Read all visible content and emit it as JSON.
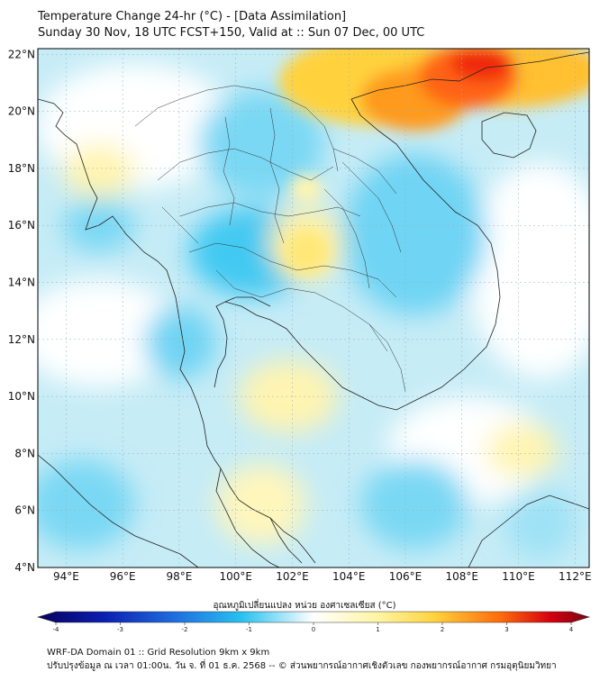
{
  "title": {
    "line1": "Temperature Change 24-hr (°C) - [Data Assimilation]",
    "line2": "Sunday 30 Nov, 18 UTC FCST+150, Valid at :: Sun 07 Dec, 00 UTC"
  },
  "axes": {
    "y_ticks": [
      "22°N",
      "20°N",
      "18°N",
      "16°N",
      "14°N",
      "12°N",
      "10°N",
      "8°N",
      "6°N",
      "4°N"
    ],
    "x_ticks": [
      "94°E",
      "96°E",
      "98°E",
      "100°E",
      "102°E",
      "104°E",
      "106°E",
      "108°E",
      "110°E",
      "112°E"
    ],
    "lon_range": [
      93,
      112.5
    ],
    "lat_range": [
      4,
      22.2
    ]
  },
  "colorbar": {
    "label": "อุณหภูมิเปลี่ยนแปลง หน่วย องศาเซลเซียส (°C)",
    "ticks": [
      "-4",
      "-3",
      "-2",
      "-1",
      "0",
      "1",
      "2",
      "3",
      "4"
    ],
    "range": [
      -4,
      4
    ],
    "colors": [
      "#07005e",
      "#0a1fb0",
      "#1e6fe0",
      "#27c2f0",
      "#ffffff",
      "#fff4a0",
      "#ffd23c",
      "#ff6a0a",
      "#d4000f",
      "#7a0010"
    ]
  },
  "footer": {
    "line1": "WRF-DA Domain 01 :: Grid Resolution 9km x 9km",
    "line2": "ปรับปรุงข้อมูล ณ เวลา 01:00น. วัน จ. ที่ 01 ธ.ค. 2568 -- © ส่วนพยากรณ์อากาศเชิงตัวเลข กองพยากรณ์อากาศ กรมอุตุนิยมวิทยา"
  }
}
